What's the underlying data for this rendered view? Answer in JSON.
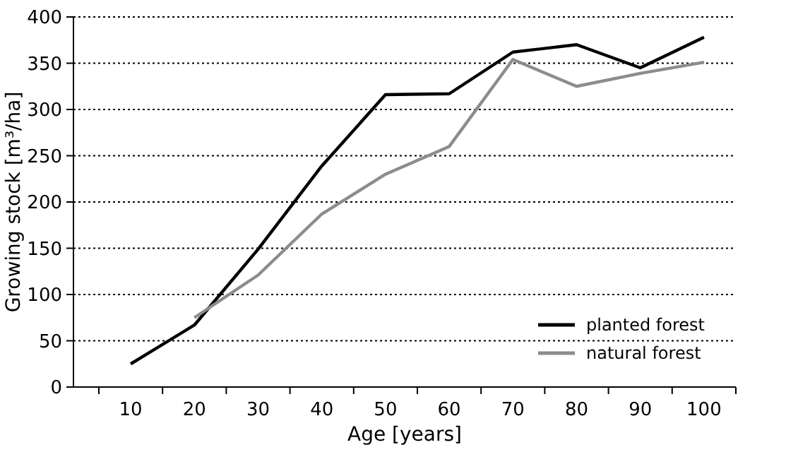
{
  "chart_data": {
    "type": "line",
    "xlabel": "Age [years]",
    "ylabel": "Growing stock [m³/ha]",
    "categories": [
      "10",
      "20",
      "30",
      "40",
      "50",
      "60",
      "70",
      "80",
      "90",
      "100"
    ],
    "series": [
      {
        "name": "planted forest",
        "color": "#000000",
        "values": [
          25,
          67,
          149,
          239,
          316,
          317,
          362,
          370,
          345,
          378
        ]
      },
      {
        "name": "natural forest",
        "color": "#8c8c8c",
        "values": [
          null,
          75,
          121,
          187,
          230,
          260,
          354,
          325,
          339,
          351
        ]
      }
    ],
    "ylim": [
      0,
      400
    ],
    "yticks": [
      0,
      50,
      100,
      150,
      200,
      250,
      300,
      350,
      400
    ],
    "grid": "y",
    "legend": "bottom right",
    "marker": "none",
    "line_style": "solid"
  }
}
